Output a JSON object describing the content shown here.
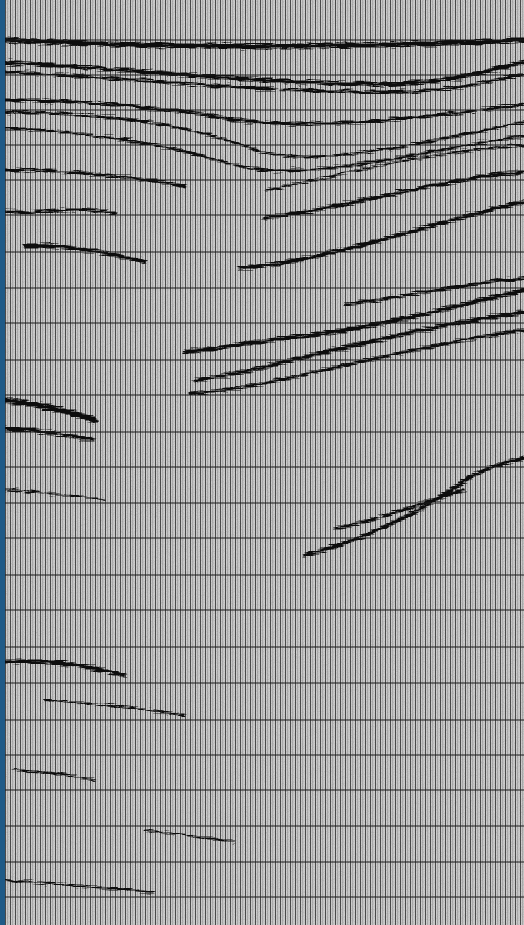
{
  "image": {
    "kind": "seismic-reflection-section",
    "colors": {
      "border": "#1f5a87",
      "background": "#c9c9c9",
      "trace": "#111111",
      "gridline": "#1a1a1a"
    },
    "grid": true,
    "gridline_count": 25,
    "trace_density": "high",
    "labels_visible": false
  }
}
